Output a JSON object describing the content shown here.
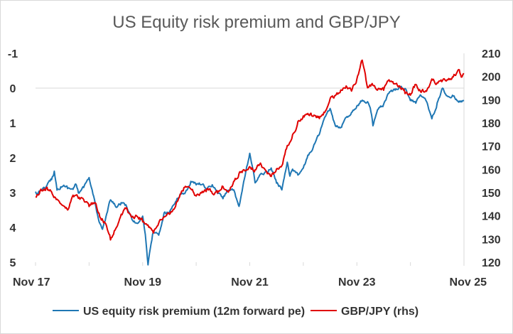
{
  "chart_data": {
    "type": "line",
    "title": "US Equity risk premium and GBP/JPY",
    "x_tick_labels": [
      "Nov 17",
      "Nov 19",
      "Nov 21",
      "Nov 23",
      "Nov 25"
    ],
    "x_range": [
      "Nov 17",
      "Nov 25"
    ],
    "left_axis": {
      "ticks": [
        "-1",
        "0",
        "1",
        "2",
        "3",
        "4",
        "5"
      ],
      "range": [
        -1,
        5
      ],
      "inverted": true
    },
    "right_axis": {
      "ticks": [
        "210",
        "200",
        "190",
        "180",
        "170",
        "160",
        "150",
        "140",
        "130",
        "120"
      ],
      "range": [
        120,
        210
      ]
    },
    "gridlines": false,
    "zero_line": true,
    "legend_position": "bottom",
    "series": [
      {
        "name": "US equity risk premium (12m forward pe)",
        "axis": "left",
        "color": "#1f77b4",
        "x": [
          0,
          0.05,
          0.1,
          0.2,
          0.3,
          0.35,
          0.4,
          0.5,
          0.6,
          0.7,
          0.75,
          0.8,
          0.9,
          1.0,
          1.1,
          1.2,
          1.25,
          1.3,
          1.4,
          1.5,
          1.6,
          1.7,
          1.8,
          1.9,
          2.0,
          2.05,
          2.1,
          2.2,
          2.3,
          2.35,
          2.4,
          2.5,
          2.6,
          2.7,
          2.8,
          2.9,
          3.0,
          3.1,
          3.2,
          3.3,
          3.4,
          3.5,
          3.6,
          3.7,
          3.75,
          3.8,
          3.9,
          4.0,
          4.1,
          4.2,
          4.3,
          4.4,
          4.5,
          4.6,
          4.7,
          4.75,
          4.8,
          4.9,
          5.0,
          5.1,
          5.2,
          5.3,
          5.4,
          5.5,
          5.6,
          5.7,
          5.8,
          5.9,
          6.0,
          6.1,
          6.2,
          6.25,
          6.3,
          6.4,
          6.5,
          6.6,
          6.7,
          6.8,
          6.9,
          7.0,
          7.1,
          7.2,
          7.3,
          7.4,
          7.5,
          7.6,
          7.7,
          7.8,
          7.9,
          8.0
        ],
        "values": [
          3.0,
          3.05,
          2.9,
          2.85,
          2.6,
          2.4,
          2.9,
          2.8,
          2.85,
          2.9,
          2.75,
          3.0,
          2.85,
          2.6,
          3.2,
          3.9,
          4.05,
          3.8,
          3.2,
          3.4,
          3.3,
          3.4,
          3.75,
          3.9,
          3.65,
          4.2,
          5.05,
          4.1,
          4.25,
          3.95,
          3.6,
          3.55,
          3.3,
          3.05,
          3.0,
          2.7,
          2.75,
          2.75,
          2.9,
          2.8,
          3.0,
          3.15,
          2.9,
          2.95,
          3.2,
          3.4,
          2.6,
          1.9,
          2.7,
          2.5,
          2.4,
          2.3,
          2.7,
          2.9,
          2.1,
          2.55,
          2.3,
          2.5,
          2.3,
          1.9,
          1.65,
          1.3,
          0.85,
          0.6,
          1.1,
          1.15,
          0.85,
          0.7,
          0.5,
          0.35,
          0.4,
          0.6,
          1.05,
          0.6,
          0.5,
          0.15,
          0.05,
          -0.05,
          0.0,
          0.35,
          0.4,
          0.2,
          0.35,
          0.9,
          0.45,
          0.0,
          0.25,
          0.2,
          0.4,
          0.35
        ]
      },
      {
        "name": "GBP/JPY (rhs)",
        "axis": "right",
        "color": "#e00000",
        "x": [
          0,
          0.1,
          0.2,
          0.3,
          0.4,
          0.5,
          0.6,
          0.7,
          0.8,
          0.9,
          1.0,
          1.1,
          1.2,
          1.3,
          1.4,
          1.5,
          1.6,
          1.7,
          1.8,
          1.9,
          2.0,
          2.1,
          2.2,
          2.3,
          2.4,
          2.5,
          2.6,
          2.7,
          2.8,
          2.9,
          3.0,
          3.1,
          3.2,
          3.3,
          3.4,
          3.5,
          3.6,
          3.7,
          3.8,
          3.9,
          4.0,
          4.1,
          4.2,
          4.3,
          4.4,
          4.5,
          4.6,
          4.7,
          4.8,
          4.9,
          5.0,
          5.1,
          5.2,
          5.3,
          5.4,
          5.5,
          5.6,
          5.7,
          5.8,
          5.9,
          6.0,
          6.1,
          6.2,
          6.3,
          6.4,
          6.5,
          6.6,
          6.7,
          6.8,
          6.9,
          7.0,
          7.1,
          7.2,
          7.3,
          7.4,
          7.5,
          7.6,
          7.7,
          7.8,
          7.9,
          7.95,
          8.0
        ],
        "values": [
          148,
          151,
          152,
          150,
          147,
          145,
          143,
          149,
          148,
          147,
          144,
          146,
          140,
          137,
          130,
          135,
          141,
          143,
          139,
          140,
          138,
          136,
          133,
          137,
          139,
          141,
          144,
          149,
          153,
          152,
          148,
          150,
          151,
          150,
          150,
          153,
          150,
          155,
          158,
          160,
          161,
          160,
          163,
          159,
          157,
          160,
          162,
          170,
          175,
          180,
          183,
          184,
          183,
          182,
          185,
          190,
          192,
          194,
          196,
          194,
          199,
          207,
          195,
          196,
          195,
          194,
          199,
          197,
          196,
          193,
          192,
          197,
          193,
          194,
          199,
          197,
          198,
          199,
          200,
          203,
          200,
          201
        ]
      }
    ]
  }
}
